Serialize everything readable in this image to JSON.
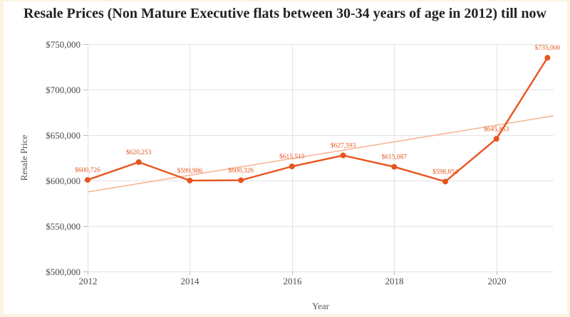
{
  "page": {
    "background_color": "#FBF4DF",
    "card_color": "#FFFFFF"
  },
  "chart_data": {
    "type": "line",
    "title": "Resale Prices (Non Mature Executive flats between 30-34 years of age in 2012) till now",
    "xlabel": "Year",
    "ylabel": "Resale Price",
    "x": [
      2012,
      2013,
      2014,
      2015,
      2016,
      2017,
      2018,
      2019,
      2020,
      2021
    ],
    "series": [
      {
        "name": "Resale Price",
        "color": "#E8541E",
        "marker": "circle",
        "values": [
          600726,
          620253,
          599986,
          600326,
          615515,
          627593,
          615087,
          598854,
          645853,
          735000
        ],
        "point_labels": [
          "$600,726",
          "$620,253",
          "$599,986",
          "$600,326",
          "$615,515",
          "$627,593",
          "$615,087",
          "$598,854",
          "$645,853",
          "$735,000"
        ]
      }
    ],
    "trendline": {
      "color": "#F5B392",
      "start_x": 2012,
      "start_value": 587500,
      "end_x": 2021,
      "end_value": 670000,
      "extends_to_plot_edge": true
    },
    "xticks": [
      2012,
      2014,
      2016,
      2018,
      2020
    ],
    "xtick_labels": [
      "2012",
      "2014",
      "2016",
      "2018",
      "2020"
    ],
    "yticks": [
      500000,
      550000,
      600000,
      650000,
      700000,
      750000
    ],
    "ytick_labels": [
      "$500,000",
      "$550,000",
      "$600,000",
      "$650,000",
      "$700,000",
      "$750,000"
    ],
    "xlim": [
      2012,
      2021.12
    ],
    "ylim": [
      500000,
      750000
    ],
    "grid": true,
    "legend": "none",
    "colors": {
      "grid": "#E3E3E3",
      "tick": "#BBBBBB",
      "tick_label": "#4A4A4A",
      "axis_title": "#555555",
      "title": "#222222",
      "data_label": "#E8541E"
    }
  }
}
